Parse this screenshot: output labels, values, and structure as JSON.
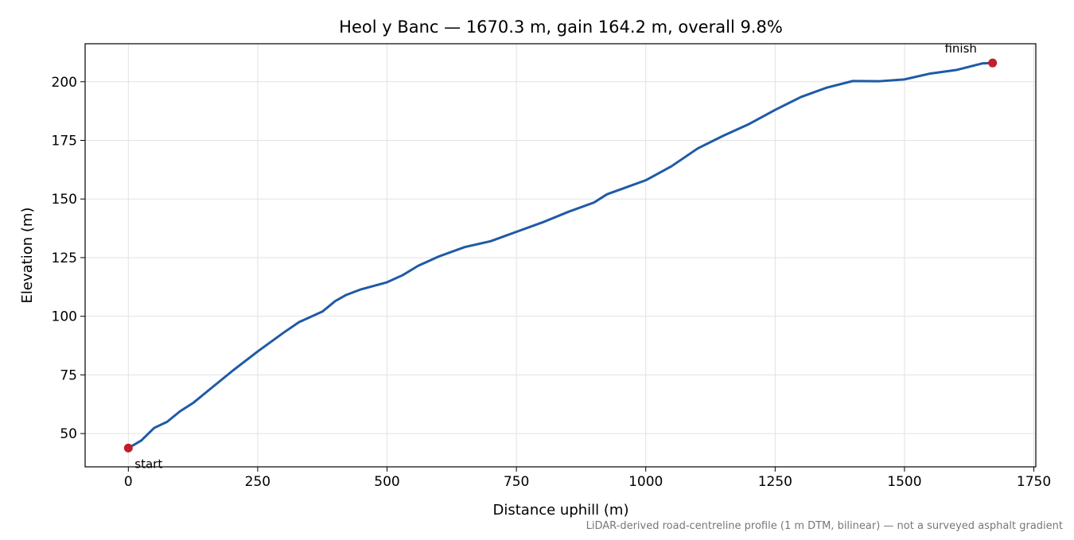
{
  "chart_data": {
    "type": "line",
    "title": "Heol y Banc — 1670.3 m, gain 164.2 m, overall 9.8%",
    "xlabel": "Distance uphill (m)",
    "ylabel": "Elevation (m)",
    "footnote": "LiDAR-derived road-centreline profile (1 m DTM, bilinear) — not a surveyed asphalt gradient",
    "x": [
      0,
      25,
      50,
      75,
      100,
      125,
      150,
      175,
      200,
      250,
      300,
      330,
      350,
      375,
      400,
      420,
      450,
      500,
      530,
      560,
      600,
      650,
      700,
      750,
      800,
      850,
      900,
      925,
      950,
      1000,
      1050,
      1100,
      1150,
      1200,
      1250,
      1300,
      1350,
      1400,
      1450,
      1500,
      1550,
      1600,
      1650,
      1670.3
    ],
    "values": [
      43.8,
      47,
      52.4,
      55,
      59.5,
      63,
      67.5,
      72,
      76.5,
      85,
      93,
      97.5,
      99.5,
      102,
      106.5,
      109,
      111.5,
      114.5,
      117.5,
      121.5,
      125.5,
      129.5,
      132,
      136,
      140,
      144.5,
      148.5,
      152,
      154,
      158,
      164,
      171.5,
      177,
      182,
      188,
      193.5,
      197.5,
      200.3,
      200.2,
      201,
      203.5,
      205,
      207.8,
      208
    ],
    "color": "#1f5aa6",
    "marker_color": "#c0202c",
    "annotations": [
      "start",
      "finish"
    ],
    "xlim": [
      -83.5,
      1753.8
    ],
    "ylim": [
      35.8,
      216.2
    ],
    "xticks": [
      0,
      250,
      500,
      750,
      1000,
      1250,
      1500,
      1750
    ],
    "yticks": [
      50,
      75,
      100,
      125,
      150,
      175,
      200
    ],
    "grid": true
  }
}
